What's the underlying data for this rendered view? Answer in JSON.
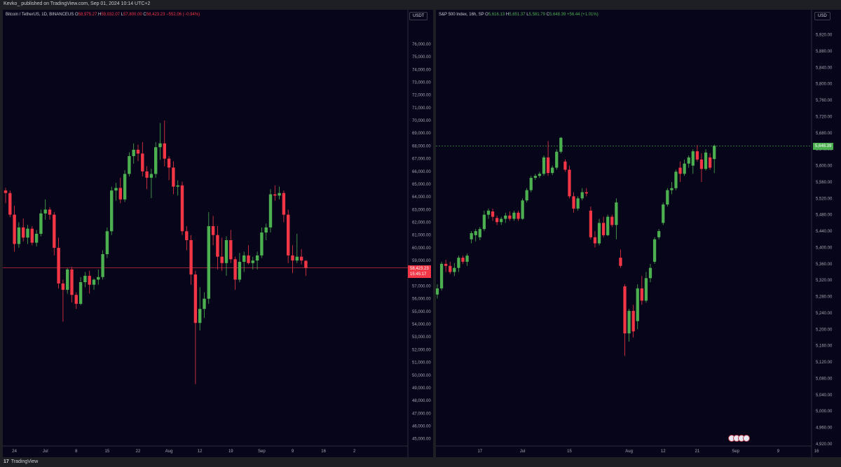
{
  "header": {
    "published": "Kevko_ published on TradingView.com, Sep 01, 2024 10:14 UTC+2"
  },
  "footer": {
    "logo": "TradingView",
    "logo_mark": "17"
  },
  "colors": {
    "up": "#4caf50",
    "down": "#f23645",
    "background": "#07051a",
    "axis_text": "#a3a6af"
  },
  "btc": {
    "title": "Bitcoin / TetherUS, 1D, BINANCEUS",
    "o_label": "O",
    "o": "58,975.27",
    "h_label": "H",
    "h": "59,032.07",
    "l_label": "L",
    "l": "57,800.00",
    "c_label": "C",
    "c": "58,423.23",
    "change": "−552.06 (−0.94%)",
    "unit": "USDT",
    "last_price": "58,423.23",
    "countdown": "15:45:17"
  },
  "spx": {
    "title": "S&P 500 Index, 16h, SP",
    "o_label": "O",
    "o": "5,616.13",
    "h_label": "H",
    "h": "5,651.37",
    "l_label": "L",
    "l": "5,581.79",
    "c_label": "C",
    "c": "5,648.39",
    "change": "+56.44 (+1.01%)",
    "unit": "USD",
    "last_price": "5,648.39"
  },
  "chart_data": [
    {
      "type": "candlestick",
      "title": "Bitcoin / TetherUS, 1D, BINANCEUS",
      "ylim": [
        44600,
        77700
      ],
      "y_ticks": [
        "45,000.00",
        "46,000.00",
        "47,000.00",
        "48,000.00",
        "49,000.00",
        "50,000.00",
        "51,000.00",
        "52,000.00",
        "53,000.00",
        "54,000.00",
        "55,000.00",
        "56,000.00",
        "57,000.00",
        "58,000.00",
        "59,000.00",
        "60,000.00",
        "61,000.00",
        "62,000.00",
        "63,000.00",
        "64,000.00",
        "65,000.00",
        "66,000.00",
        "67,000.00",
        "68,000.00",
        "69,000.00",
        "70,000.00",
        "71,000.00",
        "72,000.00",
        "73,000.00",
        "74,000.00",
        "75,000.00",
        "76,000.00"
      ],
      "y_tick_values": [
        45000,
        46000,
        47000,
        48000,
        49000,
        50000,
        51000,
        52000,
        53000,
        54000,
        55000,
        56000,
        57000,
        58000,
        59000,
        60000,
        61000,
        62000,
        63000,
        64000,
        65000,
        66000,
        67000,
        68000,
        69000,
        70000,
        71000,
        72000,
        73000,
        74000,
        75000,
        76000
      ],
      "x_ticks": [
        "24",
        "Jul",
        "8",
        "15",
        "22",
        "Aug",
        "12",
        "19",
        "Sep",
        "9",
        "16",
        "2"
      ],
      "x_tick_slots": [
        2,
        9,
        16,
        23,
        30,
        37,
        44,
        51,
        58,
        65,
        72,
        79
      ],
      "last_price": 58423.23,
      "candles": [
        {
          "o": 64500,
          "h": 64700,
          "l": 63500,
          "c": 64300
        },
        {
          "o": 64300,
          "h": 64500,
          "l": 62400,
          "c": 62600
        },
        {
          "o": 62600,
          "h": 63300,
          "l": 59700,
          "c": 60300
        },
        {
          "o": 60300,
          "h": 62000,
          "l": 60000,
          "c": 61600
        },
        {
          "o": 61600,
          "h": 62300,
          "l": 60500,
          "c": 60800
        },
        {
          "o": 60800,
          "h": 61800,
          "l": 60300,
          "c": 61500
        },
        {
          "o": 61500,
          "h": 61700,
          "l": 60200,
          "c": 60400
        },
        {
          "o": 60400,
          "h": 61400,
          "l": 60100,
          "c": 61100
        },
        {
          "o": 61100,
          "h": 63000,
          "l": 60900,
          "c": 62700
        },
        {
          "o": 62700,
          "h": 63800,
          "l": 62200,
          "c": 63000
        },
        {
          "o": 63000,
          "h": 63200,
          "l": 62200,
          "c": 62600
        },
        {
          "o": 62600,
          "h": 62800,
          "l": 59400,
          "c": 60000
        },
        {
          "o": 60000,
          "h": 60800,
          "l": 56800,
          "c": 57200
        },
        {
          "o": 57200,
          "h": 57500,
          "l": 54200,
          "c": 56700
        },
        {
          "o": 56700,
          "h": 58400,
          "l": 56400,
          "c": 58300
        },
        {
          "o": 58300,
          "h": 58500,
          "l": 55700,
          "c": 56300
        },
        {
          "o": 56300,
          "h": 56500,
          "l": 55200,
          "c": 55600
        },
        {
          "o": 55600,
          "h": 57700,
          "l": 55500,
          "c": 57300
        },
        {
          "o": 57300,
          "h": 58100,
          "l": 56900,
          "c": 57800
        },
        {
          "o": 57800,
          "h": 58200,
          "l": 56400,
          "c": 57100
        },
        {
          "o": 57100,
          "h": 57600,
          "l": 56700,
          "c": 57500
        },
        {
          "o": 57500,
          "h": 58300,
          "l": 57100,
          "c": 57700
        },
        {
          "o": 57700,
          "h": 59800,
          "l": 57500,
          "c": 59500
        },
        {
          "o": 59500,
          "h": 61600,
          "l": 59200,
          "c": 61300
        },
        {
          "o": 61300,
          "h": 64800,
          "l": 61000,
          "c": 64500
        },
        {
          "o": 64500,
          "h": 65100,
          "l": 63700,
          "c": 64700
        },
        {
          "o": 64700,
          "h": 65500,
          "l": 63500,
          "c": 63800
        },
        {
          "o": 63800,
          "h": 66100,
          "l": 63600,
          "c": 65800
        },
        {
          "o": 65800,
          "h": 67500,
          "l": 65600,
          "c": 67200
        },
        {
          "o": 67200,
          "h": 68200,
          "l": 66600,
          "c": 67700
        },
        {
          "o": 67700,
          "h": 68100,
          "l": 66800,
          "c": 67400
        },
        {
          "o": 67400,
          "h": 68300,
          "l": 65600,
          "c": 66000
        },
        {
          "o": 66000,
          "h": 66400,
          "l": 64600,
          "c": 65500
        },
        {
          "o": 65500,
          "h": 66200,
          "l": 63900,
          "c": 65800
        },
        {
          "o": 65800,
          "h": 68300,
          "l": 65500,
          "c": 67900
        },
        {
          "o": 67900,
          "h": 69800,
          "l": 66900,
          "c": 68200
        },
        {
          "o": 68200,
          "h": 70000,
          "l": 66400,
          "c": 67000
        },
        {
          "o": 67000,
          "h": 67200,
          "l": 65300,
          "c": 66300
        },
        {
          "o": 66300,
          "h": 66800,
          "l": 64200,
          "c": 64800
        },
        {
          "o": 64800,
          "h": 65300,
          "l": 64100,
          "c": 64900
        },
        {
          "o": 64900,
          "h": 65200,
          "l": 61000,
          "c": 61300
        },
        {
          "o": 61300,
          "h": 61700,
          "l": 59800,
          "c": 60600
        },
        {
          "o": 60600,
          "h": 61000,
          "l": 57100,
          "c": 57900
        },
        {
          "o": 57900,
          "h": 58200,
          "l": 49300,
          "c": 54100
        },
        {
          "o": 54100,
          "h": 56900,
          "l": 53500,
          "c": 55200
        },
        {
          "o": 55200,
          "h": 56500,
          "l": 54500,
          "c": 56000
        },
        {
          "o": 56000,
          "h": 62800,
          "l": 55600,
          "c": 61700
        },
        {
          "o": 61700,
          "h": 62500,
          "l": 60200,
          "c": 61000
        },
        {
          "o": 61000,
          "h": 61700,
          "l": 58300,
          "c": 59300
        },
        {
          "o": 59300,
          "h": 60800,
          "l": 58200,
          "c": 58800
        },
        {
          "o": 58800,
          "h": 60900,
          "l": 57800,
          "c": 60600
        },
        {
          "o": 60600,
          "h": 61400,
          "l": 58800,
          "c": 59100
        },
        {
          "o": 59100,
          "h": 59300,
          "l": 56700,
          "c": 57500
        },
        {
          "o": 57500,
          "h": 59600,
          "l": 57300,
          "c": 58900
        },
        {
          "o": 58900,
          "h": 59700,
          "l": 58100,
          "c": 59400
        },
        {
          "o": 59400,
          "h": 60200,
          "l": 58700,
          "c": 58800
        },
        {
          "o": 58800,
          "h": 59300,
          "l": 58300,
          "c": 59000
        },
        {
          "o": 59000,
          "h": 59700,
          "l": 58300,
          "c": 59400
        },
        {
          "o": 59400,
          "h": 61600,
          "l": 59200,
          "c": 61200
        },
        {
          "o": 61200,
          "h": 61900,
          "l": 60600,
          "c": 61600
        },
        {
          "o": 61600,
          "h": 64600,
          "l": 61200,
          "c": 64200
        },
        {
          "o": 64200,
          "h": 64900,
          "l": 63700,
          "c": 64100
        },
        {
          "o": 64100,
          "h": 64800,
          "l": 63800,
          "c": 64300
        },
        {
          "o": 64300,
          "h": 64500,
          "l": 62000,
          "c": 62600
        },
        {
          "o": 62600,
          "h": 63000,
          "l": 58800,
          "c": 59400
        },
        {
          "o": 59400,
          "h": 60200,
          "l": 58000,
          "c": 59000
        },
        {
          "o": 59000,
          "h": 61100,
          "l": 58800,
          "c": 59300
        },
        {
          "o": 59300,
          "h": 59900,
          "l": 58700,
          "c": 59000
        },
        {
          "o": 58975.27,
          "h": 59032.07,
          "l": 57800,
          "c": 58423.23
        }
      ]
    },
    {
      "type": "candlestick",
      "title": "S&P 500 Index, 16h, SP",
      "ylim": [
        4920,
        5950
      ],
      "y_ticks": [
        "4,920.00",
        "4,960.00",
        "5,000.00",
        "5,040.00",
        "5,080.00",
        "5,120.00",
        "5,160.00",
        "5,200.00",
        "5,240.00",
        "5,280.00",
        "5,320.00",
        "5,360.00",
        "5,400.00",
        "5,440.00",
        "5,480.00",
        "5,520.00",
        "5,560.00",
        "5,600.00",
        "5,640.00",
        "5,680.00",
        "5,720.00",
        "5,760.00",
        "5,800.00",
        "5,840.00",
        "5,880.00",
        "5,920.00"
      ],
      "y_tick_values": [
        4920,
        4960,
        5000,
        5040,
        5080,
        5120,
        5160,
        5200,
        5240,
        5280,
        5320,
        5360,
        5400,
        5440,
        5480,
        5520,
        5560,
        5600,
        5640,
        5680,
        5720,
        5760,
        5800,
        5840,
        5880,
        5920
      ],
      "x_ticks": [
        "17",
        "Jul",
        "15",
        "Aug",
        "12",
        "21",
        "Sep",
        "9",
        "16"
      ],
      "x_tick_slots": [
        10,
        20,
        31,
        45,
        53,
        61,
        70,
        80,
        89
      ],
      "last_price": 5648.39,
      "candles": [
        {
          "o": 5285,
          "h": 5310,
          "l": 5275,
          "c": 5300
        },
        {
          "o": 5300,
          "h": 5365,
          "l": 5295,
          "c": 5360
        },
        {
          "o": 5360,
          "h": 5370,
          "l": 5340,
          "c": 5355
        },
        {
          "o": 5355,
          "h": 5365,
          "l": 5335,
          "c": 5340
        },
        {
          "o": 5340,
          "h": 5362,
          "l": 5330,
          "c": 5350
        },
        {
          "o": 5350,
          "h": 5380,
          "l": 5340,
          "c": 5375
        },
        {
          "o": 5375,
          "h": 5380,
          "l": 5360,
          "c": 5365
        },
        {
          "o": 5365,
          "h": 5385,
          "l": 5355,
          "c": 5380
        },
        {
          "o": 5420,
          "h": 5440,
          "l": 5410,
          "c": 5435
        },
        {
          "o": 5430,
          "h": 5445,
          "l": 5415,
          "c": 5440
        },
        {
          "o": 5425,
          "h": 5450,
          "l": 5418,
          "c": 5445
        },
        {
          "o": 5445,
          "h": 5490,
          "l": 5440,
          "c": 5480
        },
        {
          "o": 5480,
          "h": 5495,
          "l": 5470,
          "c": 5490
        },
        {
          "o": 5488,
          "h": 5495,
          "l": 5465,
          "c": 5475
        },
        {
          "o": 5472,
          "h": 5478,
          "l": 5455,
          "c": 5462
        },
        {
          "o": 5462,
          "h": 5475,
          "l": 5455,
          "c": 5470
        },
        {
          "o": 5470,
          "h": 5485,
          "l": 5460,
          "c": 5478
        },
        {
          "o": 5478,
          "h": 5488,
          "l": 5465,
          "c": 5470
        },
        {
          "o": 5470,
          "h": 5490,
          "l": 5465,
          "c": 5485
        },
        {
          "o": 5485,
          "h": 5490,
          "l": 5465,
          "c": 5470
        },
        {
          "o": 5470,
          "h": 5520,
          "l": 5468,
          "c": 5515
        },
        {
          "o": 5515,
          "h": 5545,
          "l": 5510,
          "c": 5540
        },
        {
          "o": 5540,
          "h": 5575,
          "l": 5535,
          "c": 5570
        },
        {
          "o": 5570,
          "h": 5580,
          "l": 5565,
          "c": 5575
        },
        {
          "o": 5575,
          "h": 5585,
          "l": 5570,
          "c": 5580
        },
        {
          "o": 5580,
          "h": 5625,
          "l": 5575,
          "c": 5620
        },
        {
          "o": 5620,
          "h": 5660,
          "l": 5575,
          "c": 5582
        },
        {
          "o": 5582,
          "h": 5600,
          "l": 5577,
          "c": 5595
        },
        {
          "o": 5595,
          "h": 5640,
          "l": 5590,
          "c": 5634
        },
        {
          "o": 5634,
          "h": 5670,
          "l": 5630,
          "c": 5668
        },
        {
          "o": 5610,
          "h": 5615,
          "l": 5585,
          "c": 5590
        },
        {
          "o": 5590,
          "h": 5600,
          "l": 5520,
          "c": 5525
        },
        {
          "o": 5525,
          "h": 5535,
          "l": 5485,
          "c": 5495
        },
        {
          "o": 5495,
          "h": 5525,
          "l": 5490,
          "c": 5520
        },
        {
          "o": 5520,
          "h": 5545,
          "l": 5515,
          "c": 5535
        },
        {
          "o": 5535,
          "h": 5545,
          "l": 5525,
          "c": 5532
        },
        {
          "o": 5490,
          "h": 5500,
          "l": 5420,
          "c": 5425
        },
        {
          "o": 5425,
          "h": 5440,
          "l": 5400,
          "c": 5410
        },
        {
          "o": 5410,
          "h": 5470,
          "l": 5405,
          "c": 5460
        },
        {
          "o": 5460,
          "h": 5475,
          "l": 5425,
          "c": 5430
        },
        {
          "o": 5430,
          "h": 5480,
          "l": 5428,
          "c": 5475
        },
        {
          "o": 5475,
          "h": 5480,
          "l": 5450,
          "c": 5455
        },
        {
          "o": 5455,
          "h": 5520,
          "l": 5420,
          "c": 5510
        },
        {
          "o": 5375,
          "h": 5395,
          "l": 5350,
          "c": 5355
        },
        {
          "o": 5305,
          "h": 5310,
          "l": 5135,
          "c": 5190
        },
        {
          "o": 5190,
          "h": 5250,
          "l": 5170,
          "c": 5245
        },
        {
          "o": 5245,
          "h": 5260,
          "l": 5180,
          "c": 5195
        },
        {
          "o": 5220,
          "h": 5310,
          "l": 5200,
          "c": 5300
        },
        {
          "o": 5300,
          "h": 5330,
          "l": 5260,
          "c": 5270
        },
        {
          "o": 5270,
          "h": 5340,
          "l": 5265,
          "c": 5325
        },
        {
          "o": 5325,
          "h": 5360,
          "l": 5315,
          "c": 5350
        },
        {
          "o": 5365,
          "h": 5425,
          "l": 5360,
          "c": 5420
        },
        {
          "o": 5425,
          "h": 5445,
          "l": 5420,
          "c": 5440
        },
        {
          "o": 5460,
          "h": 5510,
          "l": 5455,
          "c": 5505
        },
        {
          "o": 5505,
          "h": 5545,
          "l": 5500,
          "c": 5540
        },
        {
          "o": 5540,
          "h": 5560,
          "l": 5530,
          "c": 5545
        },
        {
          "o": 5545,
          "h": 5590,
          "l": 5540,
          "c": 5585
        },
        {
          "o": 5595,
          "h": 5610,
          "l": 5560,
          "c": 5580
        },
        {
          "o": 5580,
          "h": 5615,
          "l": 5575,
          "c": 5605
        },
        {
          "o": 5605,
          "h": 5625,
          "l": 5595,
          "c": 5620
        },
        {
          "o": 5600,
          "h": 5640,
          "l": 5580,
          "c": 5635
        },
        {
          "o": 5635,
          "h": 5650,
          "l": 5610,
          "c": 5615
        },
        {
          "o": 5615,
          "h": 5630,
          "l": 5560,
          "c": 5592
        },
        {
          "o": 5592,
          "h": 5640,
          "l": 5588,
          "c": 5632
        },
        {
          "o": 5620,
          "h": 5630,
          "l": 5590,
          "c": 5595
        },
        {
          "o": 5616.13,
          "h": 5651.37,
          "l": 5581.79,
          "c": 5648.39
        }
      ]
    }
  ]
}
